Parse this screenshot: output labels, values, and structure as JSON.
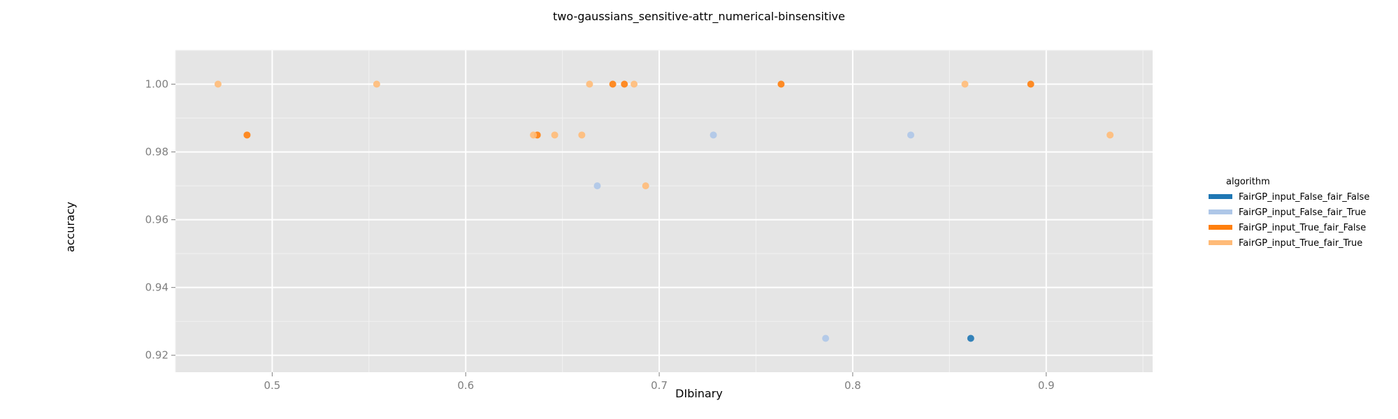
{
  "chart_data": {
    "type": "scatter",
    "title": "two-gaussians_sensitive-attr_numerical-binsensitive",
    "xlabel": "DIbinary",
    "ylabel": "accuracy",
    "xlim": [
      0.45,
      0.955
    ],
    "ylim": [
      0.915,
      1.01
    ],
    "x_ticks": [
      0.5,
      0.6,
      0.7,
      0.8,
      0.9
    ],
    "x_tick_labels": [
      "0.5",
      "0.6",
      "0.7",
      "0.8",
      "0.9"
    ],
    "y_ticks": [
      0.92,
      0.94,
      0.96,
      0.98,
      1.0
    ],
    "y_tick_labels": [
      "0.92",
      "0.94",
      "0.96",
      "0.98",
      "1.00"
    ],
    "grid": true,
    "legend_title": "algorithm",
    "legend_position": "right",
    "series": [
      {
        "name": "FairGP_input_False_fair_False",
        "color": "#1f77b4",
        "points": [
          [
            0.861,
            0.925
          ]
        ]
      },
      {
        "name": "FairGP_input_False_fair_True",
        "color": "#aec7e8",
        "points": [
          [
            0.668,
            0.97
          ],
          [
            0.728,
            0.985
          ],
          [
            0.786,
            0.925
          ],
          [
            0.83,
            0.985
          ]
        ]
      },
      {
        "name": "FairGP_input_True_fair_False",
        "color": "#ff7f0e",
        "points": [
          [
            0.487,
            0.985
          ],
          [
            0.637,
            0.985
          ],
          [
            0.676,
            1.0
          ],
          [
            0.682,
            1.0
          ],
          [
            0.763,
            1.0
          ],
          [
            0.892,
            1.0
          ]
        ]
      },
      {
        "name": "FairGP_input_True_fair_True",
        "color": "#ffbb78",
        "points": [
          [
            0.472,
            1.0
          ],
          [
            0.554,
            1.0
          ],
          [
            0.635,
            0.985
          ],
          [
            0.646,
            0.985
          ],
          [
            0.66,
            0.985
          ],
          [
            0.664,
            1.0
          ],
          [
            0.687,
            1.0
          ],
          [
            0.693,
            0.97
          ],
          [
            0.858,
            1.0
          ],
          [
            0.933,
            0.985
          ]
        ]
      }
    ]
  }
}
